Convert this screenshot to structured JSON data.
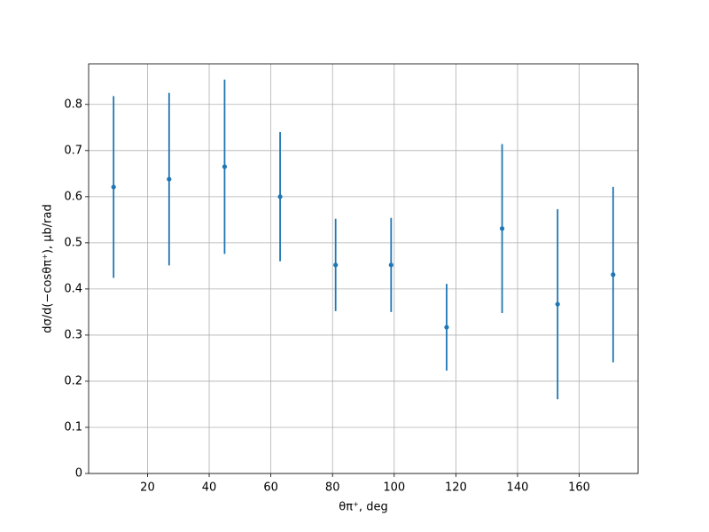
{
  "chart_data": {
    "type": "errorbar",
    "x": [
      9,
      27,
      45,
      63,
      81,
      99,
      117,
      135,
      153,
      171
    ],
    "values": [
      0.621,
      0.638,
      0.665,
      0.6,
      0.452,
      0.452,
      0.317,
      0.531,
      0.367,
      0.431
    ],
    "errors": [
      0.197,
      0.187,
      0.189,
      0.14,
      0.1,
      0.102,
      0.094,
      0.183,
      0.206,
      0.19
    ],
    "color": "#1f77b4",
    "xlabel": "θπ⁺, deg",
    "ylabel": "dσ/d(−cosθπ⁺), μb/rad",
    "xlim": [
      0.9,
      179.1
    ],
    "xticks": [
      20,
      40,
      60,
      80,
      100,
      120,
      140,
      160
    ],
    "ylim": [
      0,
      0.888
    ],
    "yticks": [
      0.0,
      0.1,
      0.2,
      0.3,
      0.4,
      0.5,
      0.6,
      0.7,
      0.8
    ],
    "grid": true
  }
}
